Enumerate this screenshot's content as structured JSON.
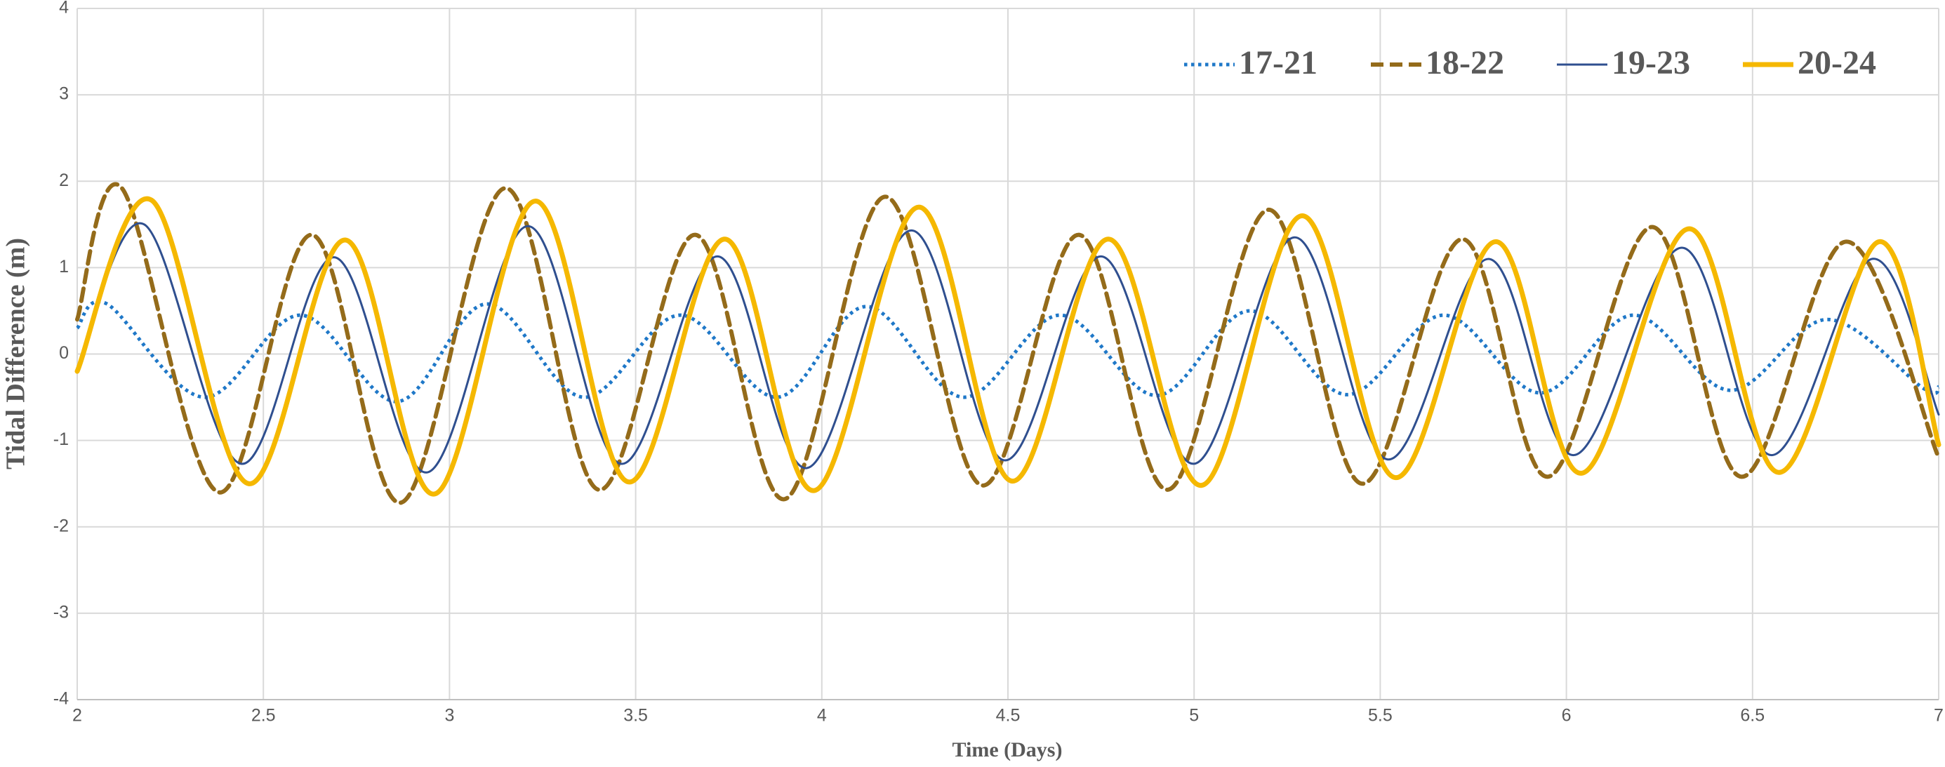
{
  "chart_data": {
    "type": "line",
    "xlabel": "Time (Days)",
    "ylabel": "Tidal Difference (m)",
    "xlim": [
      2,
      7
    ],
    "xticks": [
      2,
      2.5,
      3,
      3.5,
      4,
      4.5,
      5,
      5.5,
      6,
      6.5,
      7
    ],
    "ylim": [
      -4,
      4
    ],
    "yticks": [
      -4,
      -3,
      -2,
      -1,
      0,
      1,
      2,
      3,
      4
    ],
    "grid": true,
    "legend": "upper right",
    "series": [
      {
        "name": "17-21",
        "color": "#1f78c8",
        "style": "dotted",
        "width": 5,
        "x": [
          2,
          2.08,
          2.34,
          2.6,
          2.86,
          3.1,
          3.36,
          3.62,
          3.88,
          4.12,
          4.38,
          4.64,
          4.9,
          5.15,
          5.41,
          5.67,
          5.93,
          6.18,
          6.44,
          6.7,
          6.96,
          7
        ],
        "values": [
          0.3,
          0.58,
          -0.5,
          0.45,
          -0.55,
          0.58,
          -0.5,
          0.45,
          -0.5,
          0.55,
          -0.5,
          0.45,
          -0.48,
          0.5,
          -0.47,
          0.45,
          -0.45,
          0.45,
          -0.42,
          0.4,
          -0.4,
          -0.38
        ]
      },
      {
        "name": "18-22",
        "color": "#946b1a",
        "style": "dashed",
        "width": 6,
        "x": [
          2,
          2.12,
          2.38,
          2.63,
          2.87,
          3.15,
          3.4,
          3.66,
          3.9,
          4.17,
          4.43,
          4.69,
          4.93,
          5.2,
          5.45,
          5.72,
          5.95,
          6.23,
          6.47,
          6.75,
          7
        ],
        "values": [
          0.4,
          1.92,
          -1.6,
          1.38,
          -1.72,
          1.92,
          -1.57,
          1.38,
          -1.68,
          1.82,
          -1.52,
          1.38,
          -1.57,
          1.67,
          -1.5,
          1.33,
          -1.42,
          1.47,
          -1.42,
          1.3,
          -1.2
        ]
      },
      {
        "name": "19-23",
        "color": "#2f4f8f",
        "style": "solid",
        "width": 3,
        "x": [
          2,
          2.18,
          2.44,
          2.69,
          2.94,
          3.21,
          3.46,
          3.72,
          3.96,
          4.24,
          4.49,
          4.75,
          5.0,
          5.27,
          5.52,
          5.79,
          6.02,
          6.31,
          6.55,
          6.82,
          7
        ],
        "values": [
          -0.2,
          1.5,
          -1.27,
          1.12,
          -1.37,
          1.48,
          -1.27,
          1.13,
          -1.32,
          1.43,
          -1.23,
          1.13,
          -1.27,
          1.35,
          -1.22,
          1.1,
          -1.17,
          1.23,
          -1.17,
          1.1,
          -0.7
        ]
      },
      {
        "name": "20-24",
        "color": "#f5b800",
        "style": "solid",
        "width": 7,
        "x": [
          2,
          2.2,
          2.46,
          2.72,
          2.96,
          3.23,
          3.48,
          3.74,
          3.98,
          4.26,
          4.51,
          4.77,
          5.02,
          5.29,
          5.54,
          5.81,
          6.04,
          6.33,
          6.57,
          6.84,
          7
        ],
        "values": [
          -0.2,
          1.78,
          -1.5,
          1.32,
          -1.62,
          1.77,
          -1.48,
          1.33,
          -1.58,
          1.7,
          -1.47,
          1.33,
          -1.52,
          1.6,
          -1.43,
          1.3,
          -1.38,
          1.45,
          -1.37,
          1.3,
          -1.05
        ]
      }
    ]
  }
}
